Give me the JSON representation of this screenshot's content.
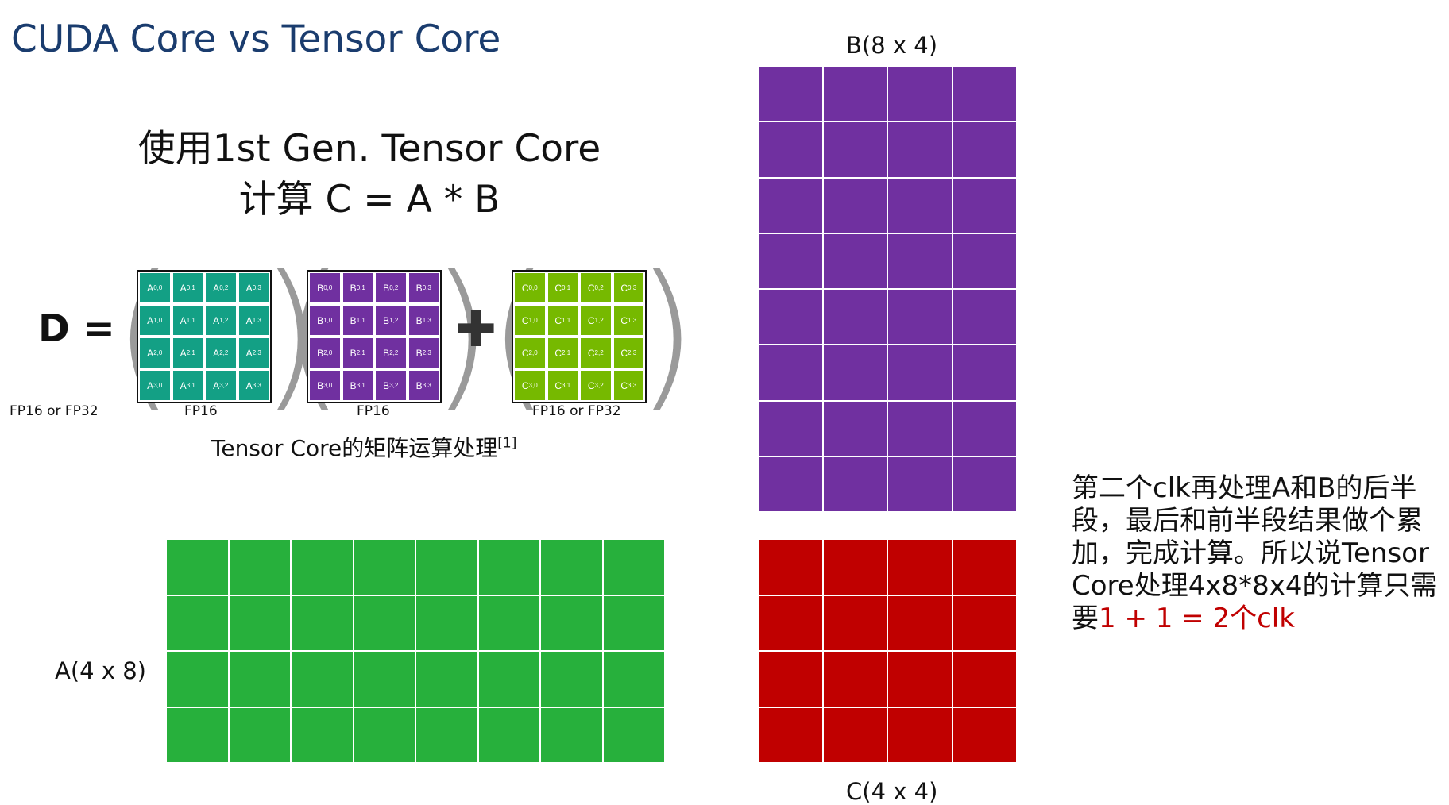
{
  "title": "CUDA Core vs Tensor Core",
  "heading": {
    "line1": "使用1st Gen. Tensor Core",
    "line2": "计算 C = A * B"
  },
  "formula": {
    "lhs": "D =",
    "lhs_type": "FP16 or FP32",
    "plus": "✚",
    "matrices": [
      {
        "name": "A",
        "type": "FP16",
        "color": "#13a085"
      },
      {
        "name": "B",
        "type": "FP16",
        "color": "#7030a0"
      },
      {
        "name": "C",
        "type": "FP16 or FP32",
        "color": "#76b900"
      }
    ]
  },
  "caption": {
    "text": "Tensor Core的矩阵运算处理",
    "ref": "[1]"
  },
  "grids": {
    "B": {
      "label": "B(8 x 4)",
      "rows": 8,
      "cols": 4,
      "color": "#7030a0"
    },
    "A": {
      "label": "A(4 x 8)",
      "rows": 4,
      "cols": 8,
      "color": "#27b03c"
    },
    "C": {
      "label": "C(4 x 4)",
      "rows": 4,
      "cols": 4,
      "color": "#c00000"
    }
  },
  "note": {
    "text": "第二个clk再处理A和B的后半段，最后和前半段结果做个累加，完成计算。所以说Tensor Core处理4x8*8x4的计算只需要",
    "highlight": "1 + 1 = 2个clk"
  }
}
